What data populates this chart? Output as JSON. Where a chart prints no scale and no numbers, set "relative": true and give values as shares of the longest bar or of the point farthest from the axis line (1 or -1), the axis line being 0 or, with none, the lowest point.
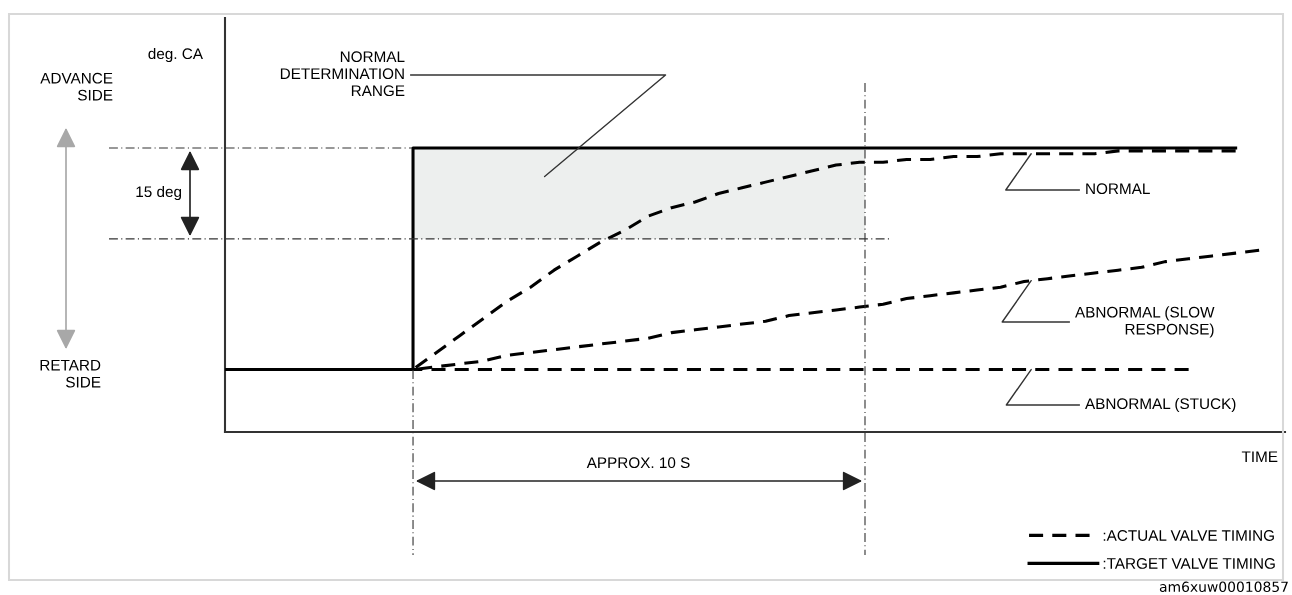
{
  "chart_data": {
    "type": "line",
    "relative": true,
    "xlabel": "TIME",
    "legend": "bottom right",
    "marker": "none",
    "categories": [
      null,
      null,
      null,
      null,
      null,
      null,
      null,
      null,
      null,
      null,
      null,
      null,
      null,
      null,
      null,
      null,
      null,
      null,
      null,
      null,
      null,
      null,
      null,
      null,
      null,
      null,
      null,
      null,
      null,
      null,
      null,
      null,
      null,
      null,
      null,
      null,
      null,
      null,
      null,
      null,
      null,
      null,
      null,
      null,
      null
    ],
    "series": [
      {
        "name": ":TARGET VALVE TIMING",
        "type": "step",
        "color": "#000000",
        "line_style": "solid",
        "values": [
          0.22,
          0.22,
          0.22,
          0.22,
          0.22,
          0.22,
          0.22,
          0.22,
          1,
          1,
          1,
          1,
          1,
          1,
          1,
          1,
          1,
          1,
          1,
          1,
          1,
          1,
          1,
          1,
          1,
          1,
          1,
          1,
          1,
          1,
          1,
          1,
          1,
          1,
          1,
          1,
          1,
          1,
          1,
          1,
          1,
          1,
          1,
          1,
          null
        ]
      },
      {
        "name": "NORMAL",
        "color": "#000000",
        "line_style": "dashed",
        "values": [
          null,
          null,
          null,
          null,
          null,
          null,
          null,
          null,
          0.22,
          0.28,
          0.34,
          0.4,
          0.46,
          0.51,
          0.57,
          0.62,
          0.67,
          0.71,
          0.76,
          0.79,
          0.81,
          0.84,
          0.86,
          0.88,
          0.9,
          0.92,
          0.94,
          0.95,
          0.95,
          0.96,
          0.96,
          0.97,
          0.97,
          0.98,
          0.98,
          0.98,
          0.98,
          0.98,
          0.99,
          0.99,
          0.99,
          0.99,
          0.99,
          0.99,
          null
        ]
      },
      {
        "name": "ABNORMAL (SLOW\nRESPONSE)",
        "color": "#000000",
        "line_style": "dashed",
        "values": [
          null,
          null,
          null,
          null,
          null,
          null,
          null,
          null,
          0.22,
          0.23,
          0.24,
          0.25,
          0.27,
          0.28,
          0.29,
          0.3,
          0.31,
          0.32,
          0.33,
          0.35,
          0.36,
          0.37,
          0.38,
          0.39,
          0.41,
          0.42,
          0.43,
          0.44,
          0.45,
          0.47,
          0.48,
          0.49,
          0.5,
          0.51,
          0.53,
          0.54,
          0.55,
          0.56,
          0.57,
          0.58,
          0.6,
          0.61,
          0.62,
          0.63,
          0.64
        ]
      },
      {
        "name": "ABNORMAL (STUCK)",
        "color": "#000000",
        "line_style": "dashed",
        "values": [
          null,
          null,
          null,
          null,
          null,
          null,
          null,
          null,
          0.22,
          0.22,
          0.22,
          0.22,
          0.22,
          0.22,
          0.22,
          0.22,
          0.22,
          0.22,
          0.22,
          0.22,
          0.22,
          0.22,
          0.22,
          0.22,
          0.22,
          0.22,
          0.22,
          0.22,
          0.22,
          0.22,
          0.22,
          0.22,
          0.22,
          0.22,
          0.22,
          0.22,
          0.22,
          0.22,
          0.22,
          0.22,
          0.22,
          0.22,
          null,
          null,
          null
        ]
      }
    ],
    "ref_lines": [
      {
        "axis": "y",
        "value": 1,
        "label": null
      },
      {
        "axis": "y",
        "value": 0.68,
        "label": null
      }
    ],
    "bands": [
      {
        "axis": "y",
        "from": 0.68,
        "to": 1,
        "label": "NORMAL\nDETERMINATION\nRANGE",
        "color": "#edefee"
      }
    ],
    "annotations": [
      "deg. CA",
      "ADVANCE\nSIDE",
      "RETARD\nSIDE",
      "15 deg",
      "APPROX. 10 S",
      ":ACTUAL VALVE TIMING",
      "am6xuw00010857"
    ]
  }
}
